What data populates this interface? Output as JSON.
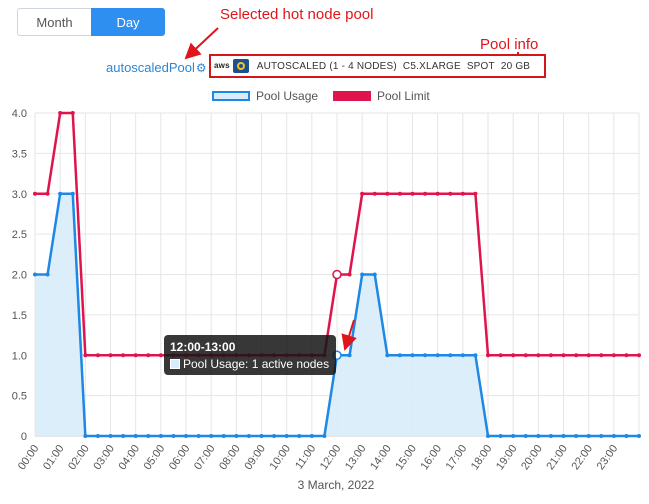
{
  "toggle": {
    "month_label": "Month",
    "day_label": "Day",
    "selected": "Day"
  },
  "annotations": {
    "selected_pool": "Selected hot node pool",
    "pool_info": "Pool info"
  },
  "pool": {
    "name": "autoscaledPool",
    "provider_text": "aws",
    "scaling": "AUTOSCALED (1 - 4 NODES)",
    "instance": "C5.XLARGE",
    "type": "SPOT",
    "disk": "20 GB"
  },
  "tooltip": {
    "title": "12:00-13:00",
    "text": "Pool Usage: 1 active nodes"
  },
  "colors": {
    "usage_line": "#1e88e5",
    "usage_fill": "#d9ecfb",
    "limit_line": "#e0144c",
    "annotation": "#e0151b",
    "accent": "#2f8ff0"
  },
  "chart_data": {
    "type": "line",
    "xlabel": "3 March, 2022",
    "x_ticks": [
      "00:00",
      "01:00",
      "02:00",
      "03:00",
      "04:00",
      "05:00",
      "06:00",
      "07:00",
      "08:00",
      "09:00",
      "10:00",
      "11:00",
      "12:00",
      "13:00",
      "14:00",
      "15:00",
      "16:00",
      "17:00",
      "18:00",
      "19:00",
      "20:00",
      "21:00",
      "22:00",
      "23:00"
    ],
    "ylim": [
      0,
      4
    ],
    "y_ticks": [
      "0",
      "0.5",
      "1.0",
      "1.5",
      "2.0",
      "2.5",
      "3.0",
      "3.5",
      "4.0"
    ],
    "grid": true,
    "legend_position": "top",
    "series": [
      {
        "name": "Pool Usage",
        "area": true,
        "points": [
          [
            0,
            2
          ],
          [
            0.5,
            2
          ],
          [
            1,
            3
          ],
          [
            1.5,
            3
          ],
          [
            2,
            0
          ],
          [
            2.5,
            0
          ],
          [
            3,
            0
          ],
          [
            3.5,
            0
          ],
          [
            4,
            0
          ],
          [
            4.5,
            0
          ],
          [
            5,
            0
          ],
          [
            5.5,
            0
          ],
          [
            6,
            0
          ],
          [
            6.5,
            0
          ],
          [
            7,
            0
          ],
          [
            7.5,
            0
          ],
          [
            8,
            0
          ],
          [
            8.5,
            0
          ],
          [
            9,
            0
          ],
          [
            9.5,
            0
          ],
          [
            10,
            0
          ],
          [
            10.5,
            0
          ],
          [
            11,
            0
          ],
          [
            11.5,
            0
          ],
          [
            12,
            1
          ],
          [
            12.5,
            1
          ],
          [
            13,
            2
          ],
          [
            13.5,
            2
          ],
          [
            14,
            1
          ],
          [
            14.5,
            1
          ],
          [
            15,
            1
          ],
          [
            15.5,
            1
          ],
          [
            16,
            1
          ],
          [
            16.5,
            1
          ],
          [
            17,
            1
          ],
          [
            17.5,
            1
          ],
          [
            18,
            0
          ],
          [
            18.5,
            0
          ],
          [
            19,
            0
          ],
          [
            19.5,
            0
          ],
          [
            20,
            0
          ],
          [
            20.5,
            0
          ],
          [
            21,
            0
          ],
          [
            21.5,
            0
          ],
          [
            22,
            0
          ],
          [
            22.5,
            0
          ],
          [
            23,
            0
          ],
          [
            23.5,
            0
          ],
          [
            24,
            0
          ]
        ]
      },
      {
        "name": "Pool Limit",
        "area": false,
        "points": [
          [
            0,
            3
          ],
          [
            0.5,
            3
          ],
          [
            1,
            4
          ],
          [
            1.5,
            4
          ],
          [
            2,
            1
          ],
          [
            2.5,
            1
          ],
          [
            3,
            1
          ],
          [
            3.5,
            1
          ],
          [
            4,
            1
          ],
          [
            4.5,
            1
          ],
          [
            5,
            1
          ],
          [
            5.5,
            1
          ],
          [
            6,
            1
          ],
          [
            6.5,
            1
          ],
          [
            7,
            1
          ],
          [
            7.5,
            1
          ],
          [
            8,
            1
          ],
          [
            8.5,
            1
          ],
          [
            9,
            1
          ],
          [
            9.5,
            1
          ],
          [
            10,
            1
          ],
          [
            10.5,
            1
          ],
          [
            11,
            1
          ],
          [
            11.5,
            1
          ],
          [
            12,
            2
          ],
          [
            12.5,
            2
          ],
          [
            13,
            3
          ],
          [
            13.5,
            3
          ],
          [
            14,
            3
          ],
          [
            14.5,
            3
          ],
          [
            15,
            3
          ],
          [
            15.5,
            3
          ],
          [
            16,
            3
          ],
          [
            16.5,
            3
          ],
          [
            17,
            3
          ],
          [
            17.5,
            3
          ],
          [
            18,
            1
          ],
          [
            18.5,
            1
          ],
          [
            19,
            1
          ],
          [
            19.5,
            1
          ],
          [
            20,
            1
          ],
          [
            20.5,
            1
          ],
          [
            21,
            1
          ],
          [
            21.5,
            1
          ],
          [
            22,
            1
          ],
          [
            22.5,
            1
          ],
          [
            23,
            1
          ],
          [
            23.5,
            1
          ],
          [
            24,
            1
          ]
        ]
      }
    ],
    "highlight_x": 12
  }
}
